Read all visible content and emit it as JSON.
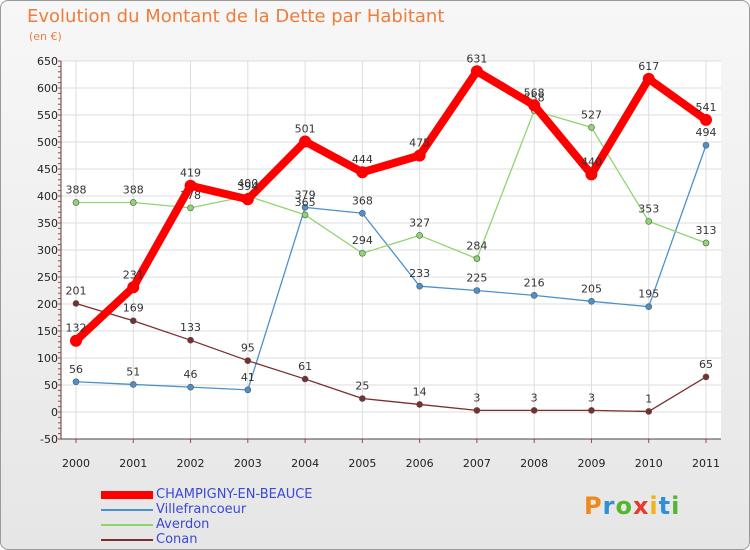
{
  "title": "Evolution du Montant de la Dette par Habitant",
  "unit_label": "(en €)",
  "logo": {
    "text": "Proxiti",
    "letters": [
      {
        "ch": "P",
        "color": "#ee8a1c"
      },
      {
        "ch": "r",
        "color": "#2f8fd9"
      },
      {
        "ch": "o",
        "color": "#53b62e"
      },
      {
        "ch": "x",
        "color": "#e63b2e"
      },
      {
        "ch": "i",
        "color": "#f2b21b"
      },
      {
        "ch": "t",
        "color": "#2f8fd9"
      },
      {
        "ch": "i",
        "color": "#53b62e"
      }
    ]
  },
  "chart_data": {
    "type": "line",
    "title": "Evolution du Montant de la Dette par Habitant",
    "ylabel": "(en €)",
    "x": [
      "2000",
      "2001",
      "2002",
      "2003",
      "2004",
      "2005",
      "2006",
      "2007",
      "2008",
      "2009",
      "2010",
      "2011"
    ],
    "ylim": [
      -50,
      650
    ],
    "yticks": [
      -50,
      0,
      50,
      100,
      150,
      200,
      250,
      300,
      350,
      400,
      450,
      500,
      550,
      600,
      650
    ],
    "grid": true,
    "legend_position": "bottom-left",
    "series": [
      {
        "name": "CHAMPIGNY-EN-BEAUCE",
        "color": "#ff0000",
        "values": [
          132,
          231,
          419,
          394,
          501,
          444,
          475,
          631,
          568,
          440,
          617,
          541
        ]
      },
      {
        "name": "Villefrancoeur",
        "color": "#4b92cd",
        "values": [
          56,
          51,
          46,
          41,
          379,
          368,
          233,
          225,
          216,
          205,
          195,
          494
        ]
      },
      {
        "name": "Averdon",
        "color": "#8fd66f",
        "values": [
          388,
          388,
          378,
          400,
          365,
          294,
          327,
          284,
          558,
          527,
          353,
          313
        ]
      },
      {
        "name": "Conan",
        "color": "#7b2e2e",
        "values": [
          201,
          169,
          133,
          95,
          61,
          25,
          14,
          3,
          3,
          3,
          1,
          65
        ]
      }
    ]
  }
}
